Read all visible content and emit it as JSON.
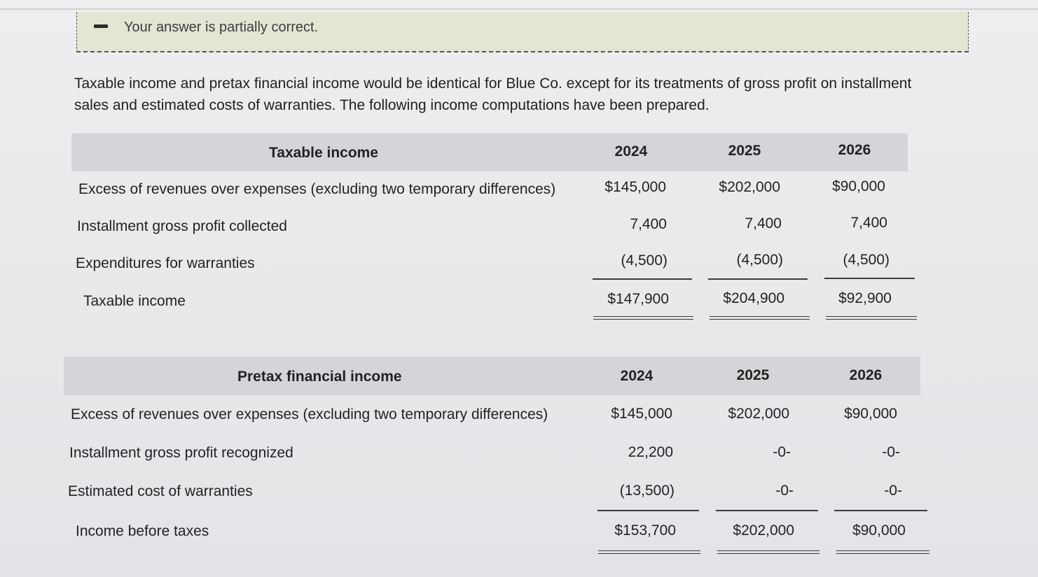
{
  "feedback": {
    "icon": "minus-icon",
    "message": "Your answer is partially correct."
  },
  "intro_text": "Taxable income and pretax financial income would be identical for Blue Co. except for its treatments of gross profit on installment sales and estimated costs of warranties. The following income computations have been prepared.",
  "taxable_table": {
    "title": "Taxable income",
    "years": [
      "2024",
      "2025",
      "2026"
    ],
    "rows": [
      {
        "label": "Excess of revenues over expenses (excluding two temporary differences)",
        "values": [
          "$145,000",
          "$202,000",
          "$90,000"
        ]
      },
      {
        "label": "Installment gross profit collected",
        "values": [
          "7,400",
          "7,400",
          "7,400"
        ]
      },
      {
        "label": "Expenditures for warranties",
        "values": [
          "(4,500)",
          "(4,500)",
          "(4,500)"
        ]
      },
      {
        "label": "Taxable income",
        "values": [
          "$147,900",
          "$204,900",
          "$92,900"
        ]
      }
    ]
  },
  "pretax_table": {
    "title": "Pretax financial income",
    "years": [
      "2024",
      "2025",
      "2026"
    ],
    "rows": [
      {
        "label": "Excess of revenues over expenses  (excluding two temporary differences)",
        "values": [
          "$145,000",
          "$202,000",
          "$90,000"
        ]
      },
      {
        "label": "Installment gross profit recognized",
        "values": [
          "22,200",
          "-0-",
          "-0-"
        ]
      },
      {
        "label": "Estimated cost of warranties",
        "values": [
          "(13,500)",
          "-0-",
          "-0-"
        ]
      },
      {
        "label": "Income before taxes",
        "values": [
          "$153,700",
          "$202,000",
          "$90,000"
        ]
      }
    ]
  }
}
